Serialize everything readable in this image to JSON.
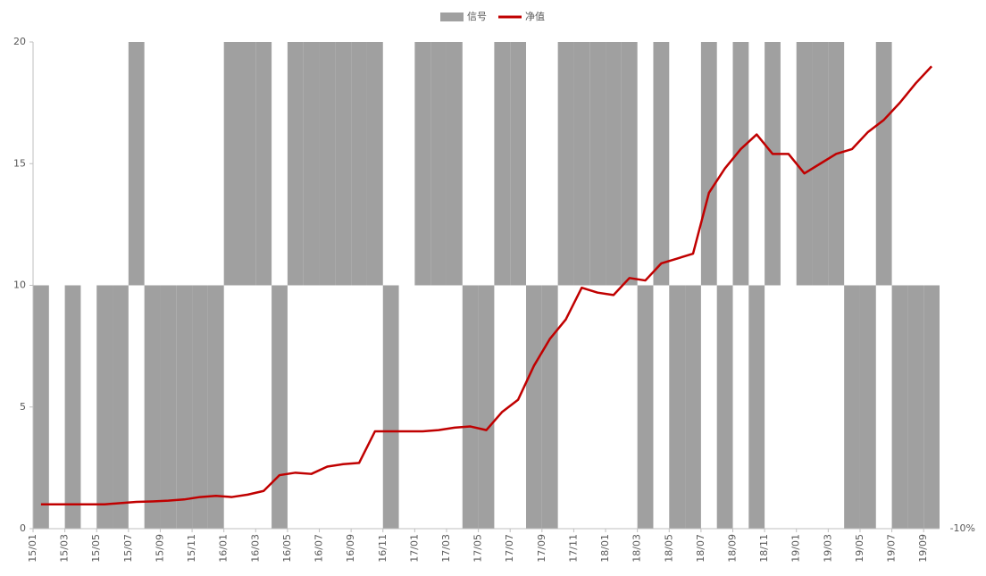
{
  "chart_data": {
    "type": "bar_line",
    "categories": [
      "15/01",
      null,
      "15/03",
      null,
      "15/05",
      null,
      "15/07",
      null,
      "15/09",
      null,
      "15/11",
      null,
      "16/01",
      null,
      "16/03",
      null,
      "16/05",
      null,
      "16/07",
      null,
      "16/09",
      null,
      "16/11",
      null,
      "17/01",
      null,
      "17/03",
      null,
      "17/05",
      null,
      "17/07",
      null,
      "17/09",
      null,
      "17/11",
      null,
      "18/01",
      null,
      "18/03",
      null,
      "18/05",
      null,
      "18/07",
      null,
      "18/09",
      null,
      "18/11",
      null,
      "19/01",
      null,
      "19/03",
      null,
      "19/05",
      null,
      "19/07",
      null,
      "19/09"
    ],
    "series": [
      {
        "name": "信号",
        "type": "bar",
        "axis": "y2",
        "color": "#a0a0a0",
        "values": [
          -10,
          0,
          -10,
          0,
          -10,
          -10,
          10,
          -10,
          -10,
          -10,
          -10,
          -10,
          10,
          10,
          10,
          -10,
          10,
          10,
          10,
          10,
          10,
          10,
          -10,
          0,
          10,
          10,
          10,
          -10,
          -10,
          10,
          10,
          -10,
          -10,
          10,
          10,
          10,
          10,
          10,
          -10,
          10,
          -10,
          -10,
          10,
          -10,
          10,
          -10,
          10,
          0,
          10,
          10,
          10,
          -10,
          -10,
          10,
          -10,
          -10,
          -10
        ]
      },
      {
        "name": "净值",
        "type": "line",
        "color": "#c00000",
        "values": [
          1.0,
          1.0,
          1.0,
          1.0,
          1.0,
          1.05,
          1.1,
          1.12,
          1.15,
          1.2,
          1.3,
          1.35,
          1.3,
          1.4,
          1.55,
          2.2,
          2.3,
          2.25,
          2.55,
          2.65,
          2.7,
          4.0,
          4.0,
          4.0,
          4.0,
          4.05,
          4.15,
          4.2,
          4.05,
          4.8,
          5.3,
          6.7,
          7.8,
          8.6,
          9.9,
          9.7,
          9.6,
          10.3,
          10.2,
          10.9,
          11.1,
          11.3,
          13.8,
          14.8,
          15.6,
          16.2,
          15.4,
          15.4,
          14.6,
          15.0,
          15.4,
          15.6,
          16.3,
          16.8,
          17.5,
          18.3,
          19.0
        ]
      }
    ],
    "ylim": [
      0,
      20
    ],
    "yticks": [
      0,
      5,
      10,
      15,
      20
    ],
    "y2lim": [
      -10,
      10
    ],
    "y2ticks": [
      {
        "value": -10,
        "label": "-10%"
      }
    ],
    "legend": "top"
  }
}
